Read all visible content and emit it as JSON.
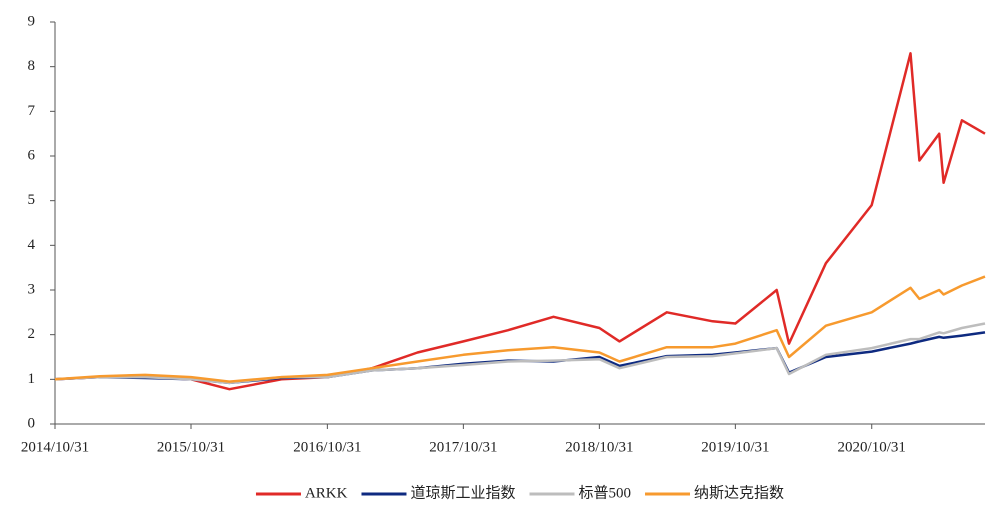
{
  "chart_data": {
    "type": "line",
    "x": [
      "2014/10/31",
      "2015/02/28",
      "2015/06/30",
      "2015/10/31",
      "2016/02/11",
      "2016/06/30",
      "2016/10/31",
      "2017/02/28",
      "2017/06/30",
      "2017/10/31",
      "2018/02/28",
      "2018/06/30",
      "2018/10/31",
      "2018/12/24",
      "2019/04/30",
      "2019/08/31",
      "2019/10/31",
      "2020/02/19",
      "2020/03/23",
      "2020/06/30",
      "2020/10/31",
      "2021/02/12",
      "2021/03/08",
      "2021/04/30",
      "2021/05/12",
      "2021/06/30",
      "2021/08/31"
    ],
    "series": [
      {
        "name": "ARKK",
        "color": "#e02a27",
        "values": [
          1.0,
          1.05,
          1.05,
          1.0,
          0.78,
          1.0,
          1.05,
          1.25,
          1.6,
          1.85,
          2.1,
          2.4,
          2.15,
          1.85,
          2.5,
          2.3,
          2.25,
          3.0,
          1.8,
          3.6,
          4.9,
          8.3,
          5.9,
          6.5,
          5.4,
          6.8,
          6.5
        ]
      },
      {
        "name": "道琼斯工业指数",
        "color": "#0e2a80",
        "values": [
          1.0,
          1.05,
          1.03,
          1.0,
          0.92,
          1.03,
          1.05,
          1.2,
          1.25,
          1.35,
          1.42,
          1.4,
          1.5,
          1.3,
          1.52,
          1.55,
          1.6,
          1.7,
          1.15,
          1.5,
          1.62,
          1.8,
          1.85,
          1.95,
          1.93,
          1.98,
          2.05
        ]
      },
      {
        "name": "标普500",
        "color": "#bdbdbd",
        "values": [
          1.0,
          1.05,
          1.05,
          1.0,
          0.92,
          1.05,
          1.05,
          1.2,
          1.25,
          1.32,
          1.4,
          1.42,
          1.45,
          1.25,
          1.5,
          1.52,
          1.58,
          1.7,
          1.12,
          1.55,
          1.7,
          1.9,
          1.9,
          2.05,
          2.03,
          2.15,
          2.25
        ]
      },
      {
        "name": "纳斯达克指数",
        "color": "#f79a2e",
        "values": [
          1.0,
          1.07,
          1.1,
          1.05,
          0.95,
          1.05,
          1.1,
          1.25,
          1.4,
          1.55,
          1.65,
          1.72,
          1.6,
          1.4,
          1.72,
          1.72,
          1.8,
          2.1,
          1.5,
          2.2,
          2.5,
          3.05,
          2.8,
          3.0,
          2.9,
          3.1,
          3.3
        ]
      }
    ],
    "xlim": [
      "2014/10/31",
      "2021/08/31"
    ],
    "xticks": [
      "2014/10/31",
      "2015/10/31",
      "2016/10/31",
      "2017/10/31",
      "2018/10/31",
      "2019/10/31",
      "2020/10/31"
    ],
    "ylim": [
      0,
      9
    ],
    "yticks": [
      0,
      1,
      2,
      3,
      4,
      5,
      6,
      7,
      8,
      9
    ],
    "legend": "bottom"
  }
}
